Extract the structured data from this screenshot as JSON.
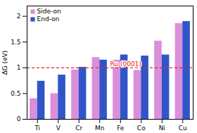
{
  "chart_data": {
    "type": "bar",
    "categories": [
      "Ti",
      "V",
      "Cr",
      "Mn",
      "Fe",
      "Co",
      "Ni",
      "Cu"
    ],
    "series": [
      {
        "name": "Side-on",
        "color": "#DA8FDB",
        "values": [
          0.4,
          0.5,
          0.96,
          1.2,
          1.15,
          0.95,
          1.52,
          1.86
        ]
      },
      {
        "name": "End-on",
        "color": "#3155C8",
        "values": [
          0.74,
          0.86,
          1.01,
          1.15,
          1.25,
          1.23,
          1.25,
          1.9
        ]
      }
    ],
    "ylabel": "ΔG (eV)",
    "ylim": [
      0,
      2.2
    ],
    "yticks": [
      0,
      0.5,
      1,
      1.5,
      2
    ],
    "grid": false,
    "legend": "upper left",
    "hlines": [
      {
        "y": 1.0,
        "label": "Ru (0001)",
        "color": "#E82020",
        "line_style": "dashed"
      }
    ]
  }
}
